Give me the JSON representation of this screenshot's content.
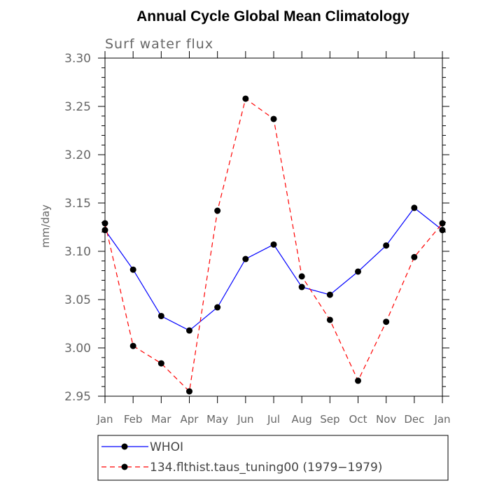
{
  "chart_data": {
    "type": "line",
    "title": "Annual Cycle Global Mean Climatology",
    "subtitle": "Surf water flux",
    "xlabel": "",
    "ylabel": "mm/day",
    "ylim": [
      2.95,
      3.3
    ],
    "yticks": [
      "3.30",
      "3.25",
      "3.20",
      "3.15",
      "3.10",
      "3.05",
      "3.00",
      "2.95"
    ],
    "categories": [
      "Jan",
      "Feb",
      "Mar",
      "Apr",
      "May",
      "Jun",
      "Jul",
      "Aug",
      "Sep",
      "Oct",
      "Nov",
      "Dec",
      "Jan"
    ],
    "grid": false,
    "legend_position": "bottom",
    "series": [
      {
        "name": "WHOI",
        "color": "#0000ff",
        "dash": "solid",
        "values": [
          3.122,
          3.081,
          3.033,
          3.018,
          3.042,
          3.092,
          3.107,
          3.063,
          3.055,
          3.079,
          3.106,
          3.145,
          3.122
        ]
      },
      {
        "name": "134.flthist.taus_tuning00 (1979−1979)",
        "color": "#ff0000",
        "dash": "dashed",
        "values": [
          3.129,
          3.002,
          2.984,
          2.955,
          3.142,
          3.258,
          3.237,
          3.074,
          3.029,
          2.966,
          3.027,
          3.094,
          3.129
        ]
      }
    ]
  }
}
